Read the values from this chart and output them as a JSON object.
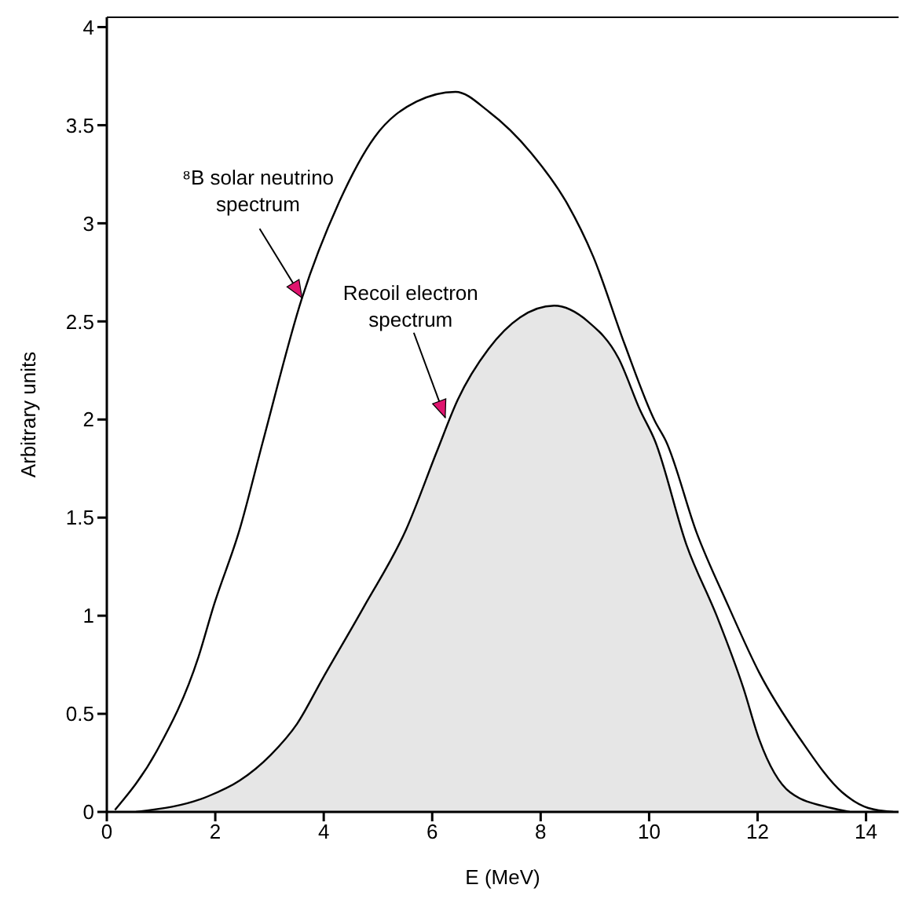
{
  "chart_data": {
    "type": "line",
    "xlabel": "E (MeV)",
    "ylabel": "Arbitrary units",
    "xlim": [
      0,
      14.6
    ],
    "ylim": [
      0,
      4.05
    ],
    "xticks": [
      0,
      2,
      4,
      6,
      8,
      10,
      12,
      14
    ],
    "yticks": [
      0,
      0.5,
      1,
      1.5,
      2,
      2.5,
      3,
      3.5,
      4
    ],
    "grid": false,
    "series": [
      {
        "color": "#000000",
        "x": [
          0.15,
          0.92,
          1.69,
          1.97,
          2.45,
          2.88,
          3.6,
          4.27,
          4.94,
          5.71,
          6.43,
          7.04,
          7.82,
          8.49,
          8.97,
          9.54,
          10.11,
          10.31,
          10.88,
          11.46,
          12.03,
          12.79,
          13.56,
          14.04,
          14.5
        ],
        "values": [
          0.01,
          0.31,
          0.79,
          1.05,
          1.44,
          1.89,
          2.62,
          3.1,
          3.44,
          3.62,
          3.67,
          3.57,
          3.36,
          3.1,
          2.83,
          2.39,
          1.99,
          1.89,
          1.42,
          1.05,
          0.71,
          0.37,
          0.1,
          0.02,
          0
        ]
      },
      {
        "type": "area",
        "color": "#e6e6e6",
        "x": [
          0.54,
          1.87,
          2.45,
          3.02,
          3.51,
          3.98,
          4.75,
          5.52,
          6.09,
          6.47,
          7.04,
          7.62,
          8.25,
          8.87,
          9.44,
          9.83,
          10.11,
          10.69,
          11.26,
          11.74,
          12.03,
          12.6,
          13.36,
          13.7
        ],
        "values": [
          0,
          0.08,
          0.16,
          0.29,
          0.45,
          0.68,
          1.05,
          1.44,
          1.84,
          2.1,
          2.36,
          2.52,
          2.58,
          2.5,
          2.31,
          2.05,
          1.89,
          1.36,
          0.99,
          0.63,
          0.37,
          0.1,
          0.02,
          0
        ]
      }
    ],
    "annotations": [
      {
        "text": "⁸B solar neutrino spectrum",
        "x": 3.6,
        "y": 2.62
      },
      {
        "text": "Recoil electron spectrum",
        "x": 6.24,
        "y": 2.01
      }
    ]
  }
}
